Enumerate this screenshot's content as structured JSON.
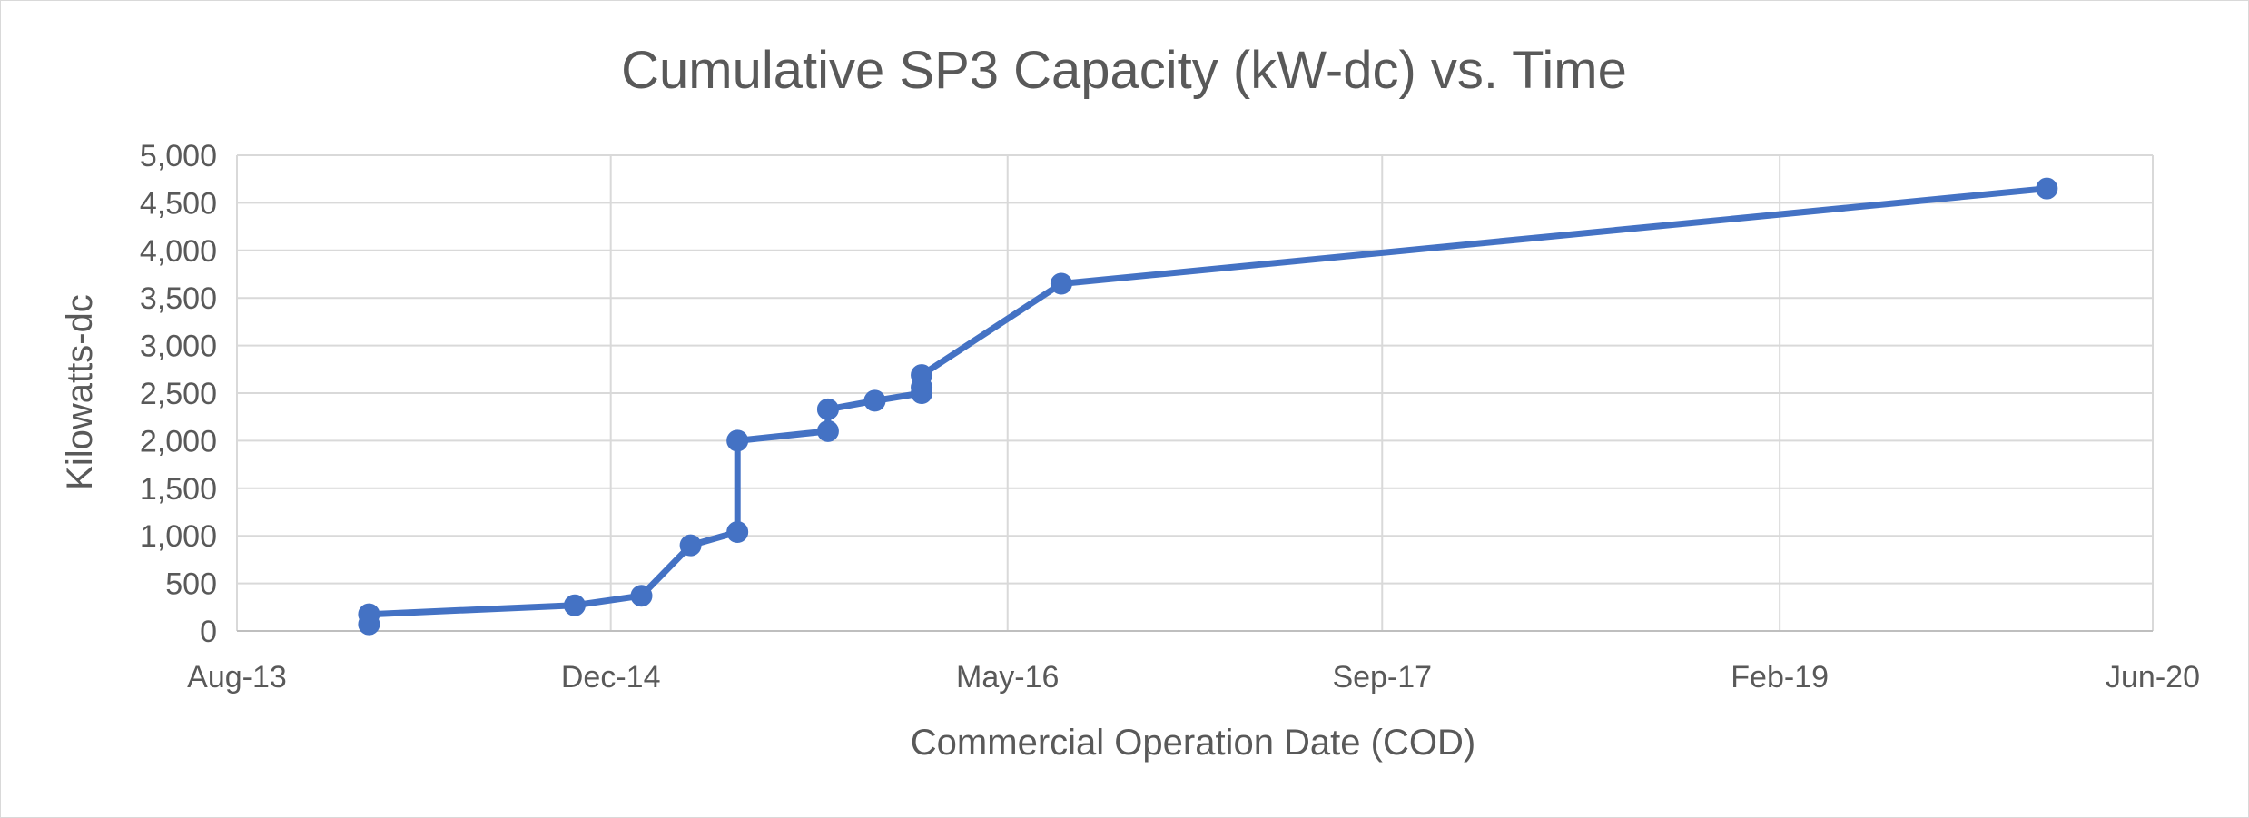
{
  "chart_data": {
    "type": "line",
    "title": "Cumulative SP3 Capacity (kW-dc) vs. Time",
    "xlabel": "Commercial Operation Date (COD)",
    "ylabel": "Kilowatts-dc",
    "x_axis_kind": "date",
    "xlim": [
      "2013-08-01",
      "2020-06-01"
    ],
    "ylim": [
      0,
      5000
    ],
    "y_ticks": [
      0,
      500,
      1000,
      1500,
      2000,
      2500,
      3000,
      3500,
      4000,
      4500,
      5000
    ],
    "y_tick_labels": [
      "0",
      "500",
      "1,000",
      "1,500",
      "2,000",
      "2,500",
      "3,000",
      "3,500",
      "4,000",
      "4,500",
      "5,000"
    ],
    "x_ticks": [
      "2013-08-01",
      "2014-12-01",
      "2016-05-01",
      "2017-09-01",
      "2019-02-01",
      "2020-06-01"
    ],
    "x_tick_labels": [
      "Aug-13",
      "Dec-14",
      "May-16",
      "Sep-17",
      "Feb-19",
      "Jun-20"
    ],
    "grid": true,
    "legend": "none",
    "series": [
      {
        "color": "#4472c4",
        "marker": "circle",
        "points": [
          {
            "x": "2014-01-20",
            "y": 70
          },
          {
            "x": "2014-01-20",
            "y": 175
          },
          {
            "x": "2014-10-15",
            "y": 270
          },
          {
            "x": "2015-01-10",
            "y": 370
          },
          {
            "x": "2015-03-15",
            "y": 900
          },
          {
            "x": "2015-05-15",
            "y": 1040
          },
          {
            "x": "2015-05-15",
            "y": 2000
          },
          {
            "x": "2015-09-10",
            "y": 2100
          },
          {
            "x": "2015-09-10",
            "y": 2330
          },
          {
            "x": "2015-11-10",
            "y": 2420
          },
          {
            "x": "2016-01-10",
            "y": 2500
          },
          {
            "x": "2016-01-10",
            "y": 2560
          },
          {
            "x": "2016-01-10",
            "y": 2690
          },
          {
            "x": "2016-07-10",
            "y": 3650
          },
          {
            "x": "2020-01-15",
            "y": 4650
          }
        ]
      }
    ]
  }
}
